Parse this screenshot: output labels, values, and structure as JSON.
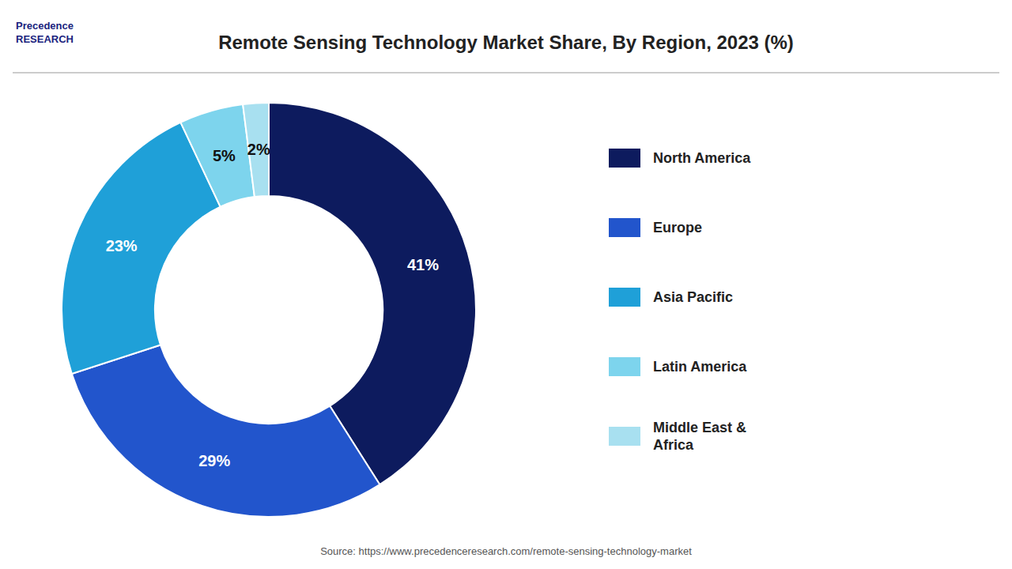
{
  "chart_data": {
    "type": "donut",
    "title": "Remote Sensing Technology Market Share, By Region, 2023 (%)",
    "categories": [
      "North America",
      "Europe",
      "Asia Pacific",
      "Latin America",
      "Middle East &\nAfrica"
    ],
    "values": [
      41,
      29,
      23,
      5,
      2
    ],
    "value_labels": [
      "41%",
      "29%",
      "23%",
      "5%",
      "2%"
    ],
    "colors": [
      "#0d1b5e",
      "#2255cc",
      "#1fa0d8",
      "#7dd4ed",
      "#a8e0f0"
    ],
    "data_labels": true,
    "legend": "right",
    "annotations": [
      "Source: https://www.precedenceresearch.com/remote-sensing-technology-market",
      "Precedence\nRESEARCH"
    ]
  }
}
